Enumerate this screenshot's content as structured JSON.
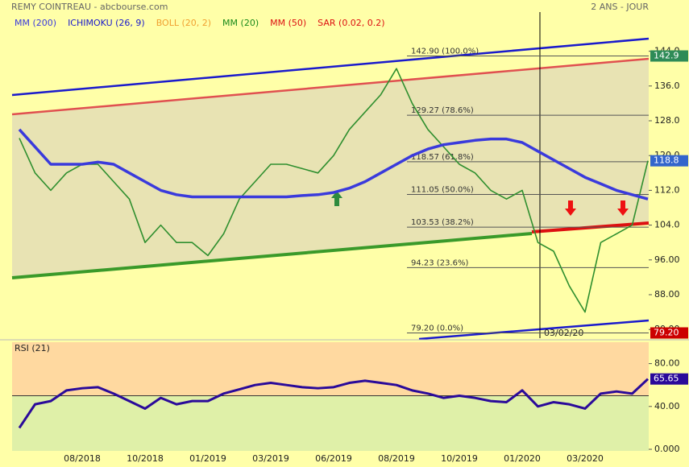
{
  "header": {
    "title": "REMY COINTREAU - abcbourse.com",
    "period": "2 ANS - JOUR"
  },
  "chart_data": [
    {
      "type": "line",
      "categories": [
        null,
        null,
        null,
        null,
        "08/2018",
        null,
        null,
        null,
        "10/2018",
        null,
        null,
        null,
        "01/2019",
        null,
        null,
        null,
        "03/2019",
        null,
        null,
        null,
        "06/2019",
        null,
        null,
        null,
        "08/2019",
        null,
        null,
        null,
        "10/2019",
        null,
        null,
        null,
        "01/2020",
        null,
        null,
        null,
        "03/2020",
        null,
        null,
        null,
        null
      ],
      "series": [
        {
          "color": "#2f8f2f",
          "values": [
            124,
            116,
            112,
            116,
            118,
            118,
            114,
            110,
            100,
            104,
            100,
            100,
            97,
            102,
            110,
            114,
            118,
            118,
            117,
            116,
            120,
            126,
            130,
            134,
            140,
            132,
            126,
            122,
            118,
            116,
            112,
            110,
            112,
            100,
            98,
            90,
            84,
            100,
            102,
            104,
            118.8
          ]
        },
        {
          "name": "MM (200)",
          "color": "#3a3adc",
          "values": [
            126,
            122,
            118,
            118,
            118,
            118.5,
            118,
            116,
            114,
            112,
            111,
            110.5,
            110.5,
            110.5,
            110.5,
            110.5,
            110.5,
            110.5,
            110.8,
            111,
            111.5,
            112.5,
            114,
            116,
            118,
            120,
            121.5,
            122.5,
            123,
            123.5,
            123.8,
            123.8,
            123,
            121,
            119,
            117,
            115,
            113.5,
            112,
            111,
            110
          ]
        }
      ],
      "overlays": [
        {
          "name": "ICHIMOKU (26, 9)",
          "color": "#1a1acc"
        },
        {
          "name": "BOLL (20, 2)",
          "color": "#f0a030"
        },
        {
          "name": "MM (20)",
          "color": "#1a8a1a"
        },
        {
          "name": "MM (50)",
          "color": "#dd1111"
        },
        {
          "name": "SAR (0.02, 0.2)",
          "color": "#dd1111"
        }
      ],
      "ylim": [
        78,
        153
      ],
      "yticks": [
        {
          "value": 144,
          "label": "144.0"
        },
        {
          "value": 136,
          "label": "136.0"
        },
        {
          "value": 128,
          "label": "128.0"
        },
        {
          "value": 120,
          "label": "120.0"
        },
        {
          "value": 112,
          "label": "112.0"
        },
        {
          "value": 104,
          "label": "104.0"
        },
        {
          "value": 96,
          "label": "96.00"
        },
        {
          "value": 88,
          "label": "88.00"
        },
        {
          "value": 80,
          "label": "80.00"
        }
      ],
      "fib_levels": [
        {
          "value": 142.9,
          "label": "142.90 (100.0%)"
        },
        {
          "value": 129.27,
          "label": "129.27 (78.6%)"
        },
        {
          "value": 118.57,
          "label": "118.57 (61.8%)"
        },
        {
          "value": 111.05,
          "label": "111.05 (50.0%)"
        },
        {
          "value": 103.53,
          "label": "103.53 (38.2%)"
        },
        {
          "value": 94.23,
          "label": "94.23 (23.6%)"
        },
        {
          "value": 79.2,
          "label": "79.20 (0.0%)"
        }
      ],
      "axis_tags": [
        {
          "value": 142.9,
          "color": "#2e8b57"
        },
        {
          "value": 79.2,
          "label": "79.20",
          "color": "#cc0000"
        }
      ],
      "last_color": "#3366cc",
      "cursor_label": "03/02/20"
    },
    {
      "type": "line",
      "title": "RSI (21)",
      "series": [
        {
          "color": "#2a0a9a",
          "values": [
            20,
            42,
            45,
            55,
            57,
            58,
            52,
            45,
            38,
            48,
            42,
            45,
            45,
            52,
            56,
            60,
            62,
            60,
            58,
            57,
            58,
            62,
            64,
            62,
            60,
            55,
            52,
            48,
            50,
            48,
            45,
            44,
            55,
            40,
            44,
            42,
            38,
            52,
            54,
            52,
            65.65
          ]
        }
      ],
      "ylim": [
        0,
        100
      ],
      "yticks": [
        {
          "value": 80,
          "label": "80.00"
        },
        {
          "value": 40,
          "label": "40.00"
        },
        {
          "value": 0,
          "label": "0.000"
        }
      ],
      "midline": 50
    }
  ]
}
